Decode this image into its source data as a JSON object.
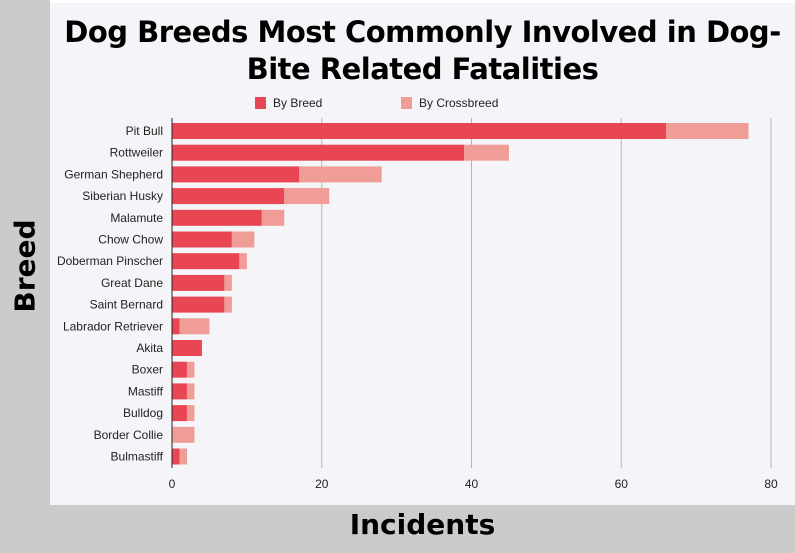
{
  "chart_data": {
    "type": "bar",
    "orientation": "horizontal",
    "stacked": true,
    "title": "Dog Breeds Most Commonly Involved in Dog-Bite Related Fatalities",
    "xlabel": "Incidents",
    "ylabel": "Breed",
    "xlim": [
      0,
      80
    ],
    "xticks": [
      0,
      20,
      40,
      60,
      80
    ],
    "grid": true,
    "legend": "top",
    "categories": [
      "Pit Bull",
      "Rottweiler",
      "German Shepherd",
      "Siberian Husky",
      "Malamute",
      "Chow Chow",
      "Doberman Pinscher",
      "Great Dane",
      "Saint Bernard",
      "Labrador Retriever",
      "Akita",
      "Boxer",
      "Mastiff",
      "Bulldog",
      "Border Collie",
      "Bulmastiff"
    ],
    "series": [
      {
        "name": "By Breed",
        "color": "#e94653",
        "values": [
          66,
          39,
          17,
          15,
          12,
          8,
          9,
          7,
          7,
          1,
          4,
          2,
          2,
          2,
          0,
          1
        ]
      },
      {
        "name": "By Crossbreed",
        "color": "#ef9d96",
        "values": [
          11,
          6,
          11,
          6,
          3,
          3,
          1,
          1,
          1,
          4,
          0,
          1,
          1,
          1,
          3,
          1
        ]
      }
    ]
  }
}
